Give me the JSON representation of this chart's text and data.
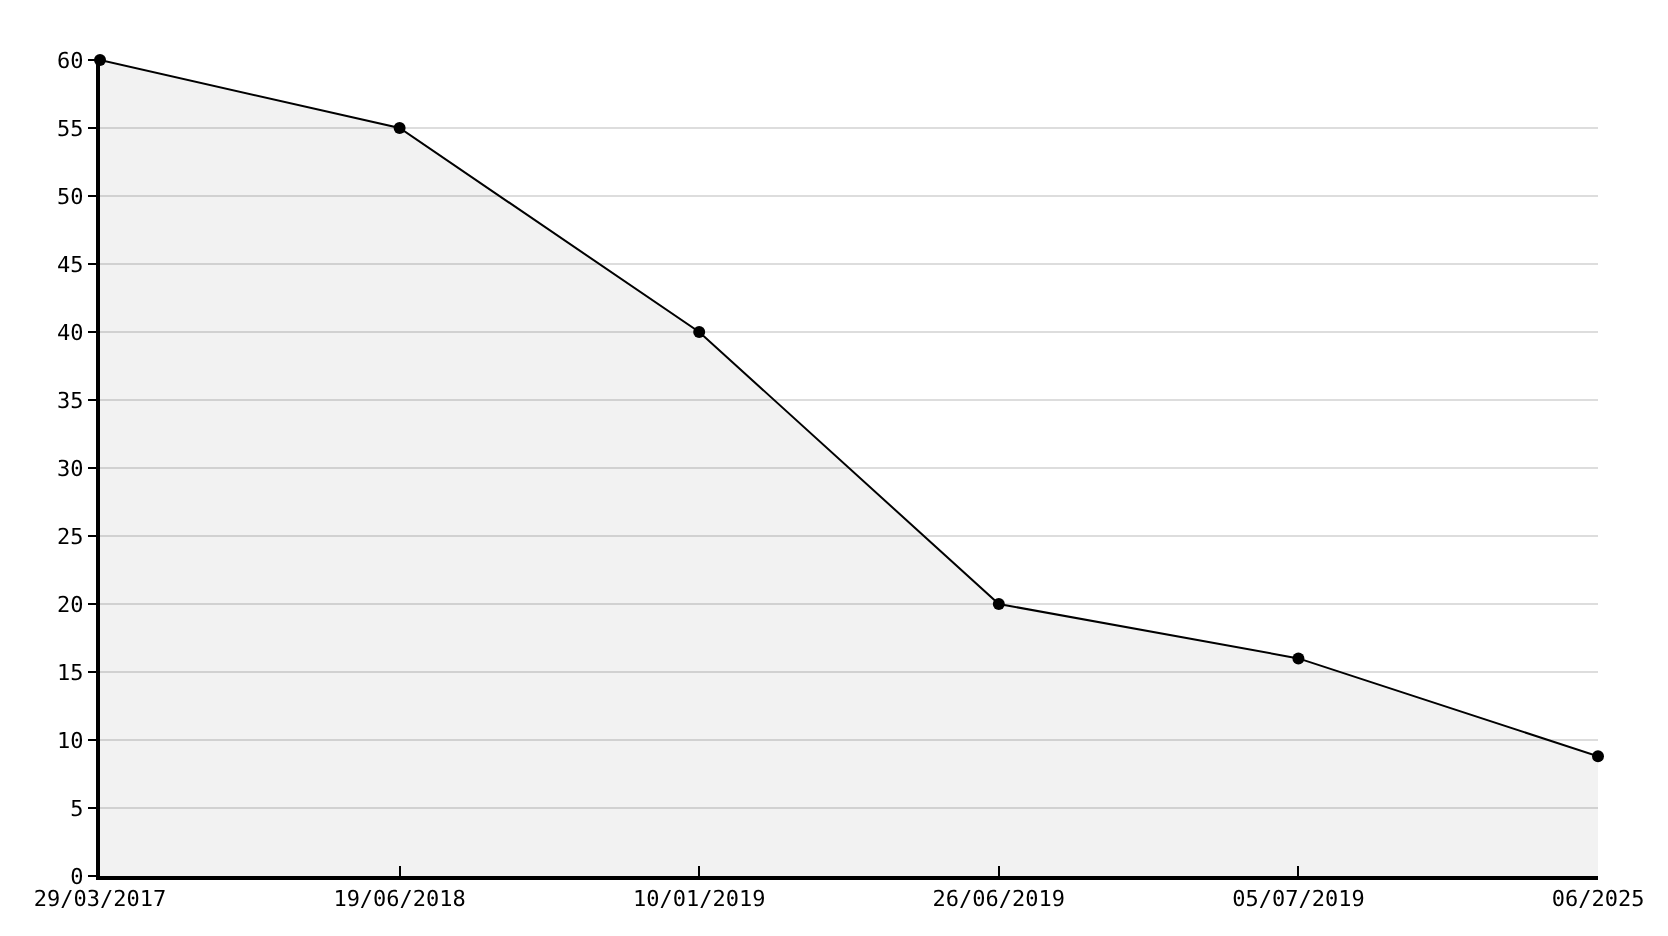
{
  "chart_data": {
    "type": "area",
    "categories": [
      "29/03/2017",
      "19/06/2018",
      "10/01/2019",
      "26/06/2019",
      "05/07/2019",
      "06/2025"
    ],
    "series": [
      {
        "color": "#000000",
        "values": [
          60,
          55,
          40,
          20,
          16,
          8.8
        ]
      }
    ],
    "ylim": [
      0,
      60
    ],
    "yticks": [
      0,
      5,
      10,
      15,
      20,
      25,
      30,
      35,
      40,
      45,
      50,
      55,
      60
    ],
    "grid": "y",
    "marker": "circle",
    "line_style": "solid",
    "legend": false
  }
}
